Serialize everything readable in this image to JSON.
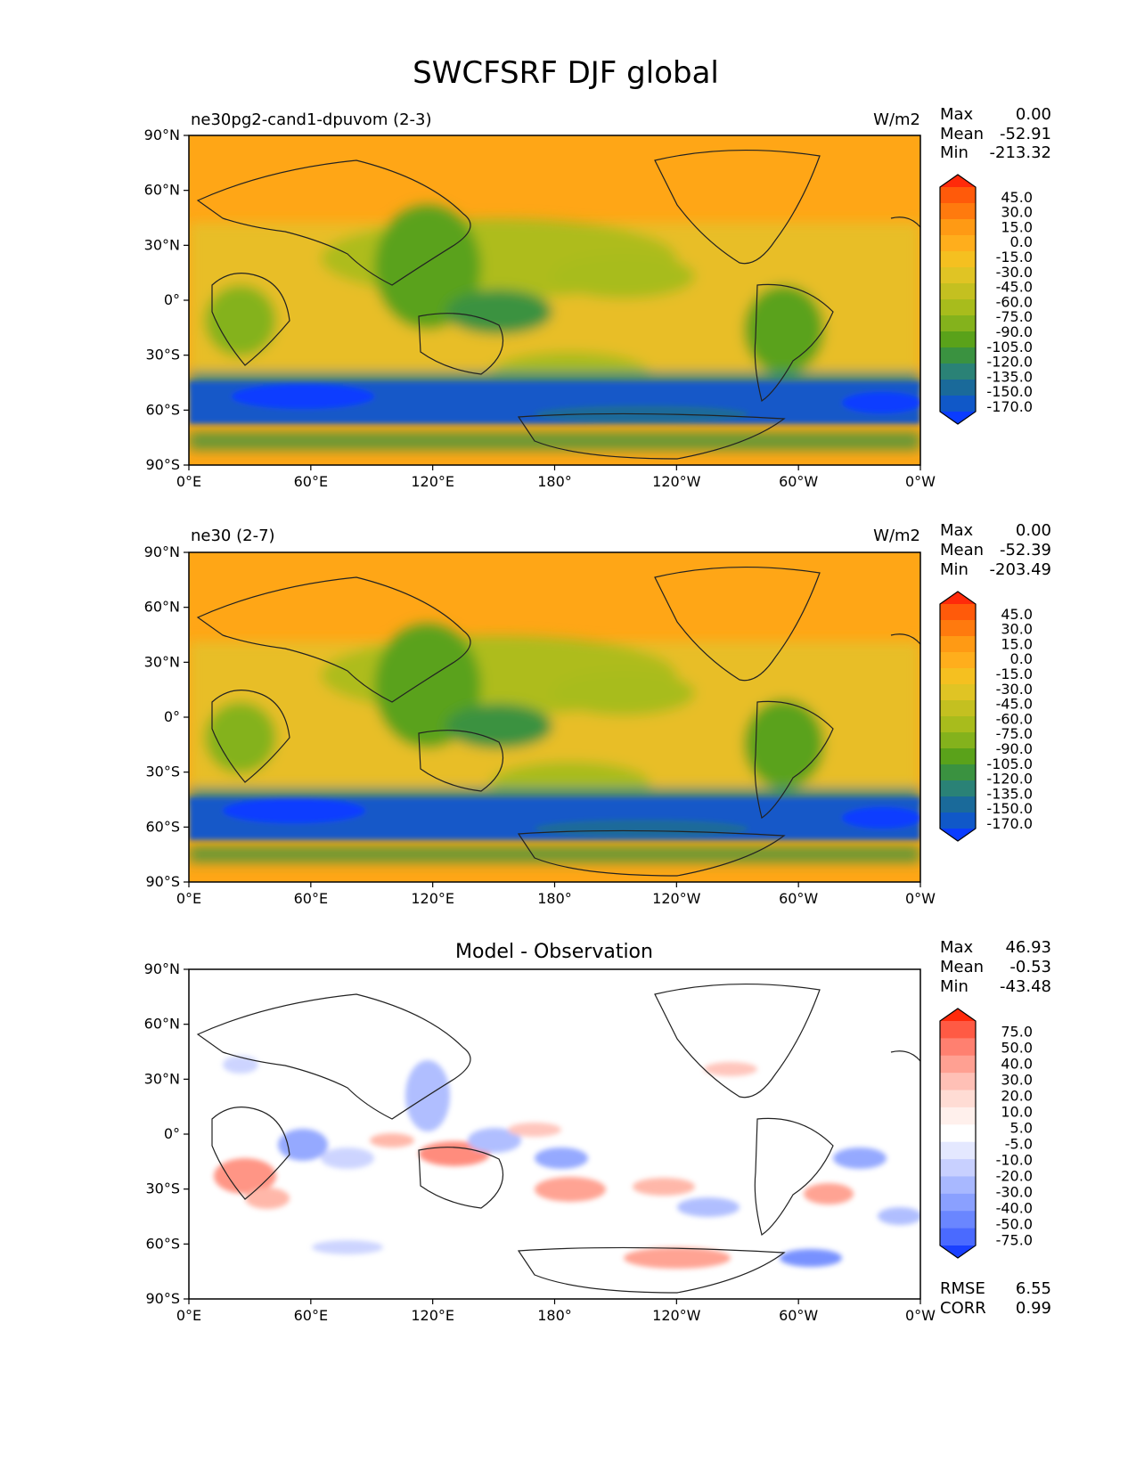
{
  "title": "SWCFSRF DJF global",
  "x_ticks": [
    "0°E",
    "60°E",
    "120°E",
    "180°",
    "120°W",
    "60°W",
    "0°W"
  ],
  "y_ticks": [
    "90°N",
    "60°N",
    "30°N",
    "0°",
    "30°S",
    "60°S",
    "90°S"
  ],
  "stat_labels": {
    "max": "Max",
    "mean": "Mean",
    "min": "Min",
    "rmse": "RMSE",
    "corr": "CORR"
  },
  "panels": [
    {
      "left_title": "ne30pg2-cand1-dpuvom (2-3)",
      "center_title": "",
      "units": "W/m2",
      "stats": {
        "max": "0.00",
        "mean": "-52.91",
        "min": "-213.32"
      },
      "colorbar_levels": [
        "45.0",
        "30.0",
        "15.0",
        "0.0",
        "-15.0",
        "-30.0",
        "-45.0",
        "-60.0",
        "-75.0",
        "-90.0",
        "-105.0",
        "-120.0",
        "-135.0",
        "-150.0",
        "-170.0"
      ]
    },
    {
      "left_title": "ne30 (2-7)",
      "center_title": "",
      "units": "W/m2",
      "stats": {
        "max": "0.00",
        "mean": "-52.39",
        "min": "-203.49"
      },
      "colorbar_levels": [
        "45.0",
        "30.0",
        "15.0",
        "0.0",
        "-15.0",
        "-30.0",
        "-45.0",
        "-60.0",
        "-75.0",
        "-90.0",
        "-105.0",
        "-120.0",
        "-135.0",
        "-150.0",
        "-170.0"
      ]
    },
    {
      "left_title": "",
      "center_title": "Model - Observation",
      "units": "",
      "stats": {
        "max": "46.93",
        "mean": "-0.53",
        "min": "-43.48",
        "rmse": "6.55",
        "corr": "0.99"
      },
      "colorbar_levels": [
        "75.0",
        "50.0",
        "40.0",
        "30.0",
        "20.0",
        "10.0",
        "5.0",
        "-5.0",
        "-10.0",
        "-20.0",
        "-30.0",
        "-40.0",
        "-50.0",
        "-75.0"
      ]
    }
  ],
  "colors": {
    "field_cbar": [
      "#ff2a0a",
      "#ff5a0a",
      "#ff7a0e",
      "#ff9a14",
      "#ffae1c",
      "#f5c020",
      "#e0c424",
      "#c4c020",
      "#a8bc1c",
      "#84b21c",
      "#5aa21a",
      "#3a9240",
      "#2a8276",
      "#1a6a9a",
      "#1058c8",
      "#0a3cff"
    ],
    "diff_cbar": [
      "#ff2a0a",
      "#ff5a44",
      "#ff8070",
      "#ffa092",
      "#ffc0b6",
      "#ffdcd4",
      "#fff0ec",
      "#ffffff",
      "#e4e8ff",
      "#c8d0ff",
      "#a8b8ff",
      "#8aa0ff",
      "#6a86ff",
      "#4a6aff",
      "#1a40ff"
    ],
    "background_orange": "#ffa616",
    "storm_blue": "#1458c8"
  }
}
